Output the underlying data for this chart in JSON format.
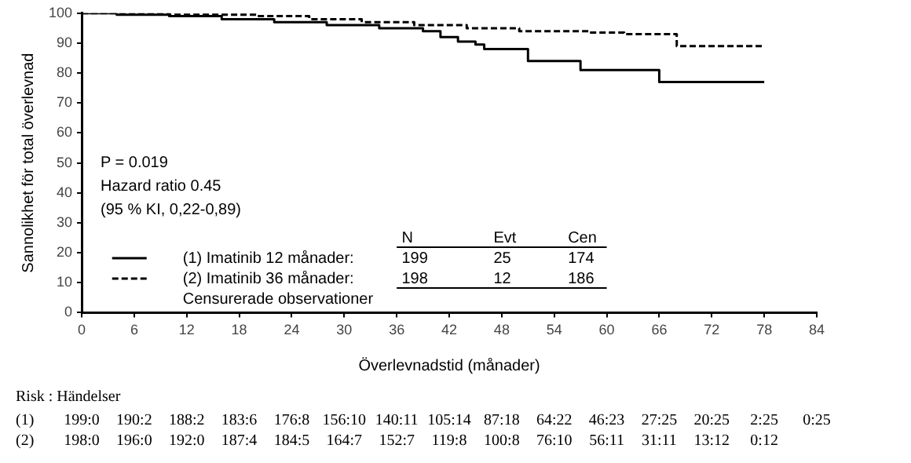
{
  "chart_data": {
    "type": "step",
    "xlabel": "Överlevnadstid (månader)",
    "ylabel": "Sannolikhet för total överlevnad",
    "xlim": [
      0,
      84
    ],
    "xticks": [
      0,
      6,
      12,
      18,
      24,
      30,
      36,
      42,
      48,
      54,
      60,
      66,
      72,
      78,
      84
    ],
    "ylim": [
      0,
      100
    ],
    "yticks": [
      0,
      10,
      20,
      30,
      40,
      50,
      60,
      70,
      80,
      90,
      100
    ],
    "grid": false,
    "legend": "bottom left",
    "marker": "none",
    "series": [
      {
        "name": "(1) Imatinib 12 månader:",
        "color": "#000000",
        "line_style": "solid",
        "x": [
          0,
          4,
          10,
          16,
          22,
          28,
          34,
          39,
          41,
          43,
          45,
          46,
          51,
          57,
          66,
          78
        ],
        "values": [
          100,
          99.5,
          99,
          98,
          97,
          96,
          95,
          94,
          92,
          90.5,
          89.5,
          88,
          84,
          81,
          77,
          77
        ]
      },
      {
        "name": "(2) Imatinib 36 månader:",
        "color": "#000000",
        "line_style": "dashed",
        "x": [
          0,
          10,
          20,
          26,
          32,
          38,
          44,
          50,
          58,
          62,
          68,
          78
        ],
        "values": [
          100,
          99.5,
          99,
          98,
          97,
          96,
          95,
          94,
          93.5,
          93,
          89,
          89
        ]
      }
    ],
    "annotations": [
      "P = 0.019",
      "Hazard ratio 0.45",
      "(95 % KI, 0,22-0,89)",
      "N Evt Cen",
      "199 25 174",
      "198 12 186",
      "Censurerade observationer",
      "Risk : Händelser",
      "(1) 199:0 190:2 188:2 183:6 176:8 156:10 140:11 105:14 87:18 64:22 46:23 27:25 20:25 2:25 0:25",
      "(2) 198:0 196:0 192:0 187:4 184:5 164:7 152:7 119:8 100:8 76:10 56:11 31:11 13:12 0:12"
    ]
  }
}
